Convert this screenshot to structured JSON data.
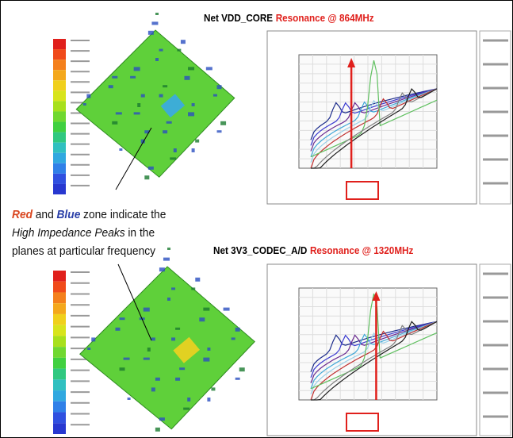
{
  "top_panel": {
    "title_net": "Net VDD_CORE",
    "title_resonance": "Resonance @ 864MHz"
  },
  "bottom_panel": {
    "title_net": "Net 3V3_CODEC_A/D",
    "title_resonance": "Resonance @ 1320MHz"
  },
  "annotation": {
    "red_word": "Red",
    "and_word": "and",
    "blue_word": "Blue",
    "line1_rest": "zone indicate the",
    "highlight": "High Impedance Peaks",
    "line2_rest": "in the",
    "line3": "planes at particular frequency"
  }
}
